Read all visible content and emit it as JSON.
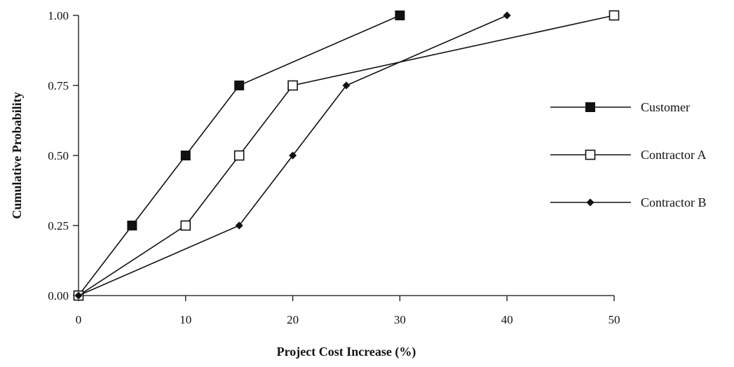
{
  "chart_data": {
    "type": "line",
    "title": "",
    "xlabel": "Project Cost Increase (%)",
    "ylabel": "Cumulative Probability",
    "xlim": [
      0,
      50
    ],
    "ylim": [
      0,
      1
    ],
    "x_ticks": [
      "0",
      "10",
      "20",
      "30",
      "40",
      "50"
    ],
    "x_tick_values": [
      0,
      10,
      20,
      30,
      40,
      50
    ],
    "y_ticks": [
      "0.00",
      "0.25",
      "0.50",
      "0.75",
      "1.00"
    ],
    "y_tick_values": [
      0,
      0.25,
      0.5,
      0.75,
      1.0
    ],
    "grid": false,
    "legend_position": "right",
    "series": [
      {
        "name": "Customer",
        "marker": "filled-square",
        "color": "#111111",
        "x": [
          0,
          5,
          10,
          15,
          30
        ],
        "y": [
          0,
          0.25,
          0.5,
          0.75,
          1.0
        ]
      },
      {
        "name": "Contractor A",
        "marker": "open-square",
        "color": "#111111",
        "x": [
          0,
          10,
          15,
          20,
          50
        ],
        "y": [
          0,
          0.25,
          0.5,
          0.75,
          1.0
        ]
      },
      {
        "name": "Contractor B",
        "marker": "filled-diamond",
        "color": "#111111",
        "x": [
          0,
          15,
          20,
          25,
          40
        ],
        "y": [
          0,
          0.25,
          0.5,
          0.75,
          1.0
        ]
      }
    ]
  }
}
